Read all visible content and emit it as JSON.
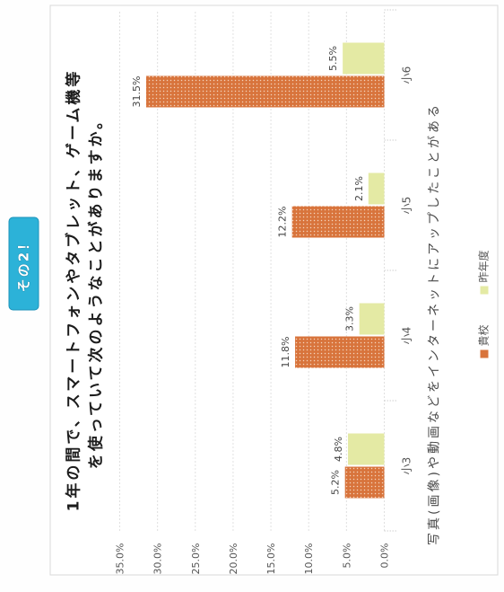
{
  "badge": {
    "label": "その2！",
    "color": "#2cb2d8"
  },
  "chart_data": {
    "type": "bar",
    "title_lines": [
      "1年の間で、スマートフォンやタブレット、ゲーム機等",
      "を使っていて次のようなことがありますか。"
    ],
    "xlabel": "写真(画像)や動画などをインターネットにアップしたことがある",
    "categories": [
      "小3",
      "小4",
      "小5",
      "小6"
    ],
    "ylim": [
      0,
      35
    ],
    "yticks": [
      0,
      5,
      10,
      15,
      20,
      25,
      30,
      35
    ],
    "ytick_labels": [
      "0.0%",
      "5.0%",
      "10.0%",
      "15.0%",
      "20.0%",
      "25.0%",
      "30.0%",
      "35.0%"
    ],
    "grid": true,
    "legend": "bottom",
    "series": [
      {
        "name": "貴校",
        "values": [
          5.2,
          11.8,
          12.2,
          31.5
        ],
        "labels": [
          "5.2%",
          "11.8%",
          "12.2%",
          "31.5%"
        ],
        "color": "#d8743c"
      },
      {
        "name": "昨年度",
        "values": [
          4.8,
          3.3,
          2.1,
          5.5
        ],
        "labels": [
          "4.8%",
          "3.3%",
          "2.1%",
          "5.5%"
        ],
        "color": "#e4eaa4"
      }
    ]
  }
}
